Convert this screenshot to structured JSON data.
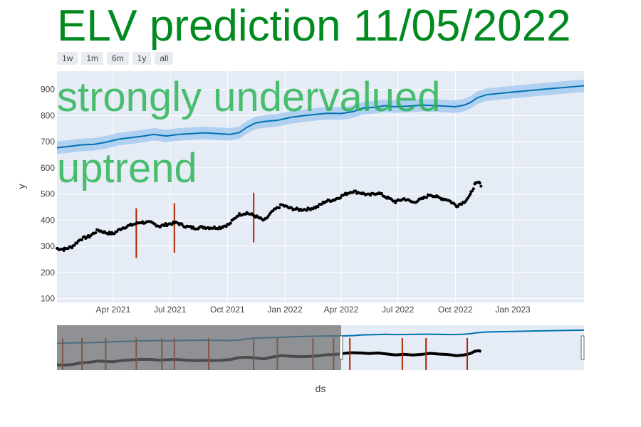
{
  "title": "ELV prediction 11/05/2022",
  "range_buttons": [
    "1w",
    "1m",
    "6m",
    "1y",
    "all"
  ],
  "annotations": [
    "strongly undervalued",
    "uptrend"
  ],
  "colors": {
    "title": "#008a1f",
    "annotation": "#22b14c",
    "plot_bg": "#e5ecf6",
    "forecast_line": "#0072b2",
    "forecast_band": "#a9cdef",
    "actual_points": "#000000",
    "changepoint": "#b22200"
  },
  "chart_data": {
    "type": "scatter",
    "xlabel": "ds",
    "ylabel": "y",
    "xlim": [
      "2021-01-01",
      "2023-04-25"
    ],
    "ylim": [
      85,
      970
    ],
    "y_ticks": [
      100,
      200,
      300,
      400,
      500,
      600,
      700,
      800,
      900
    ],
    "x_ticks": [
      {
        "date": "2021-04-01",
        "label": "Apr 2021"
      },
      {
        "date": "2021-07-01",
        "label": "Jul 2021"
      },
      {
        "date": "2021-10-01",
        "label": "Oct 2021"
      },
      {
        "date": "2022-01-01",
        "label": "Jan 2022"
      },
      {
        "date": "2022-04-01",
        "label": "Apr 2022"
      },
      {
        "date": "2022-07-01",
        "label": "Jul 2022"
      },
      {
        "date": "2022-10-01",
        "label": "Oct 2022"
      },
      {
        "date": "2023-01-01",
        "label": "Jan 2023"
      }
    ],
    "series": [
      {
        "kind": "forecast",
        "band_width": 24,
        "points": [
          [
            "2021-01-01",
            677
          ],
          [
            "2021-01-20",
            682
          ],
          [
            "2021-02-10",
            688
          ],
          [
            "2021-03-01",
            690
          ],
          [
            "2021-03-20",
            698
          ],
          [
            "2021-04-10",
            710
          ],
          [
            "2021-05-01",
            716
          ],
          [
            "2021-05-20",
            722
          ],
          [
            "2021-06-05",
            728
          ],
          [
            "2021-06-25",
            722
          ],
          [
            "2021-07-15",
            728
          ],
          [
            "2021-08-05",
            731
          ],
          [
            "2021-08-25",
            734
          ],
          [
            "2021-09-15",
            731
          ],
          [
            "2021-10-05",
            728
          ],
          [
            "2021-10-20",
            735
          ],
          [
            "2021-11-01",
            755
          ],
          [
            "2021-11-15",
            772
          ],
          [
            "2021-12-01",
            778
          ],
          [
            "2021-12-20",
            782
          ],
          [
            "2022-01-10",
            793
          ],
          [
            "2022-02-01",
            800
          ],
          [
            "2022-02-20",
            805
          ],
          [
            "2022-03-10",
            809
          ],
          [
            "2022-04-01",
            808
          ],
          [
            "2022-04-20",
            815
          ],
          [
            "2022-05-05",
            828
          ],
          [
            "2022-05-25",
            832
          ],
          [
            "2022-06-10",
            838
          ],
          [
            "2022-06-25",
            834
          ],
          [
            "2022-07-15",
            836
          ],
          [
            "2022-08-10",
            840
          ],
          [
            "2022-09-01",
            838
          ],
          [
            "2022-10-01",
            834
          ],
          [
            "2022-10-15",
            840
          ],
          [
            "2022-10-25",
            850
          ],
          [
            "2022-11-05",
            868
          ],
          [
            "2022-11-20",
            880
          ],
          [
            "2023-01-01",
            890
          ],
          [
            "2023-02-15",
            900
          ],
          [
            "2023-04-25",
            914
          ]
        ]
      },
      {
        "kind": "actual",
        "points": [
          [
            "2021-01-01",
            292
          ],
          [
            "2021-01-12",
            288
          ],
          [
            "2021-01-25",
            298
          ],
          [
            "2021-02-08",
            328
          ],
          [
            "2021-02-22",
            338
          ],
          [
            "2021-03-08",
            362
          ],
          [
            "2021-03-20",
            352
          ],
          [
            "2021-04-01",
            348
          ],
          [
            "2021-04-15",
            370
          ],
          [
            "2021-05-01",
            382
          ],
          [
            "2021-05-15",
            392
          ],
          [
            "2021-06-01",
            390
          ],
          [
            "2021-06-15",
            376
          ],
          [
            "2021-06-28",
            385
          ],
          [
            "2021-07-12",
            390
          ],
          [
            "2021-07-26",
            376
          ],
          [
            "2021-08-09",
            370
          ],
          [
            "2021-08-23",
            373
          ],
          [
            "2021-09-06",
            371
          ],
          [
            "2021-09-20",
            372
          ],
          [
            "2021-10-05",
            385
          ],
          [
            "2021-10-18",
            420
          ],
          [
            "2021-11-01",
            428
          ],
          [
            "2021-11-15",
            415
          ],
          [
            "2021-11-29",
            398
          ],
          [
            "2021-12-13",
            435
          ],
          [
            "2021-12-27",
            458
          ],
          [
            "2022-01-10",
            445
          ],
          [
            "2022-01-24",
            440
          ],
          [
            "2022-02-07",
            442
          ],
          [
            "2022-02-21",
            450
          ],
          [
            "2022-03-07",
            472
          ],
          [
            "2022-03-21",
            478
          ],
          [
            "2022-04-04",
            495
          ],
          [
            "2022-04-18",
            510
          ],
          [
            "2022-05-02",
            505
          ],
          [
            "2022-05-16",
            495
          ],
          [
            "2022-05-30",
            505
          ],
          [
            "2022-06-13",
            487
          ],
          [
            "2022-06-27",
            470
          ],
          [
            "2022-07-11",
            482
          ],
          [
            "2022-07-25",
            468
          ],
          [
            "2022-08-08",
            480
          ],
          [
            "2022-08-22",
            498
          ],
          [
            "2022-09-05",
            485
          ],
          [
            "2022-09-19",
            478
          ],
          [
            "2022-10-03",
            455
          ],
          [
            "2022-10-15",
            470
          ],
          [
            "2022-10-25",
            495
          ],
          [
            "2022-11-01",
            535
          ],
          [
            "2022-11-08",
            545
          ],
          [
            "2022-11-11",
            530
          ]
        ]
      }
    ],
    "changepoints": [
      {
        "date": "2021-05-08",
        "low": 255,
        "high": 445
      },
      {
        "date": "2021-07-08",
        "low": 275,
        "high": 465
      },
      {
        "date": "2021-11-12",
        "low": 315,
        "high": 505
      }
    ],
    "range_slider": {
      "x_axis_ticks": [],
      "selected_from": "2022-04-01",
      "selected_to": "2023-04-25",
      "changepoints": [
        "2021-01-10",
        "2021-02-10",
        "2021-03-20",
        "2021-05-08",
        "2021-06-18",
        "2021-07-08",
        "2021-09-01",
        "2021-11-12",
        "2021-12-20",
        "2022-02-15",
        "2022-03-20",
        "2022-04-15",
        "2022-07-08",
        "2022-08-15",
        "2022-10-20"
      ]
    }
  }
}
